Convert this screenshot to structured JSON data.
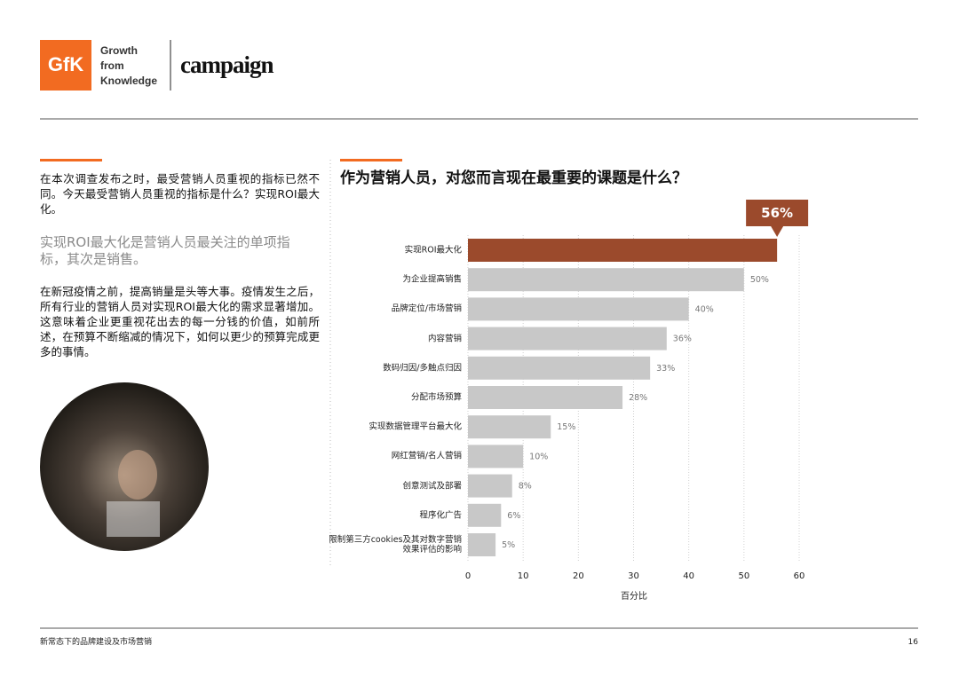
{
  "header": {
    "logo": "GfK",
    "tagline": [
      "Growth",
      "from",
      "Knowledge"
    ],
    "partner": "campaign"
  },
  "intro": {
    "paragraph_1": "在本次调查发布之时，最受营销人员重视的指标已然不同。今天最受营销人员重视的指标是什么？实现ROI最大化。",
    "highlight": "实现ROI最大化是营销人员最关注的单项指标，其次是销售。",
    "paragraph_2": "在新冠疫情之前，提高销量是头等大事。疫情发生之后，所有行业的营销人员对实现ROI最大化的需求显著增加。这意味着企业更重视花出去的每一分钱的价值，如前所述，在预算不断缩减的情况下，如何以更少的预算完成更多的事情。"
  },
  "chart_data": {
    "type": "bar",
    "orientation": "horizontal",
    "title": "作为营销人员，对您而言现在最重要的课题是什么？",
    "categories": [
      "实现ROI最大化",
      "为企业提高销售",
      "品牌定位/市场营销",
      "内容营销",
      "数码归因/多触点归因",
      "分配市场预算",
      "实现数据管理平台最大化",
      "网红营销/名人营销",
      "创意测试及部署",
      "程序化广告",
      "限制第三方cookies及其对数字营销\n效果评估的影响"
    ],
    "values": [
      56,
      50,
      40,
      36,
      33,
      28,
      15,
      10,
      8,
      6,
      5
    ],
    "value_labels": [
      "56%",
      "50%",
      "40%",
      "36%",
      "33%",
      "28%",
      "15%",
      "10%",
      "8%",
      "6%",
      "5%"
    ],
    "colors": [
      "#9b4a2c",
      "#c8c8c8",
      "#c8c8c8",
      "#c8c8c8",
      "#c8c8c8",
      "#c8c8c8",
      "#c8c8c8",
      "#c8c8c8",
      "#c8c8c8",
      "#c8c8c8",
      "#c8c8c8"
    ],
    "xlabel": "百分比",
    "xlim": [
      0,
      60
    ],
    "xticks": [
      0,
      10,
      20,
      30,
      40,
      50,
      60
    ],
    "grid": true
  },
  "footer": {
    "title": "新常态下的品牌建设及市场营销",
    "page": "16"
  }
}
